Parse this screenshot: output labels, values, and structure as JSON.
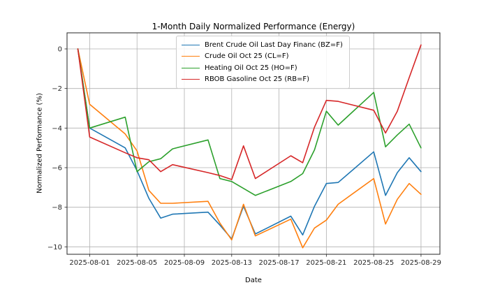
{
  "figure": {
    "background": "#ffffff",
    "grid_color": "#b0b0b0",
    "spine_color": "#262626",
    "tick_text_color": "#262626"
  },
  "chart_data": {
    "type": "line",
    "title": "1-Month Daily Normalized Performance (Energy)",
    "xlabel": "Date",
    "ylabel": "Normalized Performance (%)",
    "grid": true,
    "legend_position": "upper center",
    "ylim": [
      -10.4,
      0.85
    ],
    "x": [
      "2025-07-31",
      "2025-08-01",
      "2025-08-04",
      "2025-08-05",
      "2025-08-06",
      "2025-08-07",
      "2025-08-08",
      "2025-08-11",
      "2025-08-12",
      "2025-08-13",
      "2025-08-14",
      "2025-08-15",
      "2025-08-18",
      "2025-08-19",
      "2025-08-20",
      "2025-08-21",
      "2025-08-22",
      "2025-08-25",
      "2025-08-26",
      "2025-08-27",
      "2025-08-28",
      "2025-08-29"
    ],
    "series": [
      {
        "name": "Brent Crude Oil Last Day Financ (BZ=F)",
        "color": "#1f77b4",
        "values": [
          0,
          -4.0,
          -5.0,
          -6.15,
          -7.55,
          -8.55,
          -8.35,
          -8.25,
          -8.9,
          -9.6,
          -7.95,
          -9.35,
          -8.45,
          -9.4,
          -7.95,
          -6.8,
          -6.75,
          -5.2,
          -7.4,
          -6.25,
          -5.5,
          -6.2
        ]
      },
      {
        "name": "Crude Oil Oct 25 (CL=F)",
        "color": "#ff7f0e",
        "values": [
          0,
          -2.8,
          -4.3,
          -5.15,
          -7.15,
          -7.8,
          -7.8,
          -7.7,
          -8.8,
          -9.65,
          -7.85,
          -9.45,
          -8.6,
          -10.05,
          -9.05,
          -8.65,
          -7.85,
          -6.55,
          -8.85,
          -7.6,
          -6.8,
          -7.35
        ]
      },
      {
        "name": "Heating Oil Oct 25 (HO=F)",
        "color": "#2ca02c",
        "values": [
          0,
          -4.0,
          -3.45,
          -6.2,
          -5.7,
          -5.55,
          -5.05,
          -4.6,
          -6.55,
          -6.7,
          -7.05,
          -7.4,
          -6.7,
          -6.3,
          -5.1,
          -3.15,
          -3.85,
          -2.2,
          -4.95,
          -4.35,
          -3.8,
          -5.0
        ]
      },
      {
        "name": "RBOB Gasoline Oct 25 (RB=F)",
        "color": "#d62728",
        "values": [
          0,
          -4.45,
          -5.25,
          -5.5,
          -5.6,
          -6.2,
          -5.85,
          -6.25,
          -6.4,
          -6.6,
          -4.9,
          -6.55,
          -5.4,
          -5.75,
          -3.95,
          -2.6,
          -2.65,
          -3.1,
          -4.25,
          -3.15,
          -1.45,
          0.2
        ]
      }
    ],
    "x_ticks": [
      {
        "label": "2025-08-01",
        "date": "2025-08-01"
      },
      {
        "label": "2025-08-05",
        "date": "2025-08-05"
      },
      {
        "label": "2025-08-09",
        "date": "2025-08-09"
      },
      {
        "label": "2025-08-13",
        "date": "2025-08-13"
      },
      {
        "label": "2025-08-17",
        "date": "2025-08-17"
      },
      {
        "label": "2025-08-21",
        "date": "2025-08-21"
      },
      {
        "label": "2025-08-25",
        "date": "2025-08-25"
      },
      {
        "label": "2025-08-29",
        "date": "2025-08-29"
      }
    ],
    "y_ticks": [
      {
        "label": "0",
        "value": 0
      },
      {
        "label": "−2",
        "value": -2
      },
      {
        "label": "−4",
        "value": -4
      },
      {
        "label": "−6",
        "value": -6
      },
      {
        "label": "−8",
        "value": -8
      },
      {
        "label": "−10",
        "value": -10
      }
    ]
  }
}
